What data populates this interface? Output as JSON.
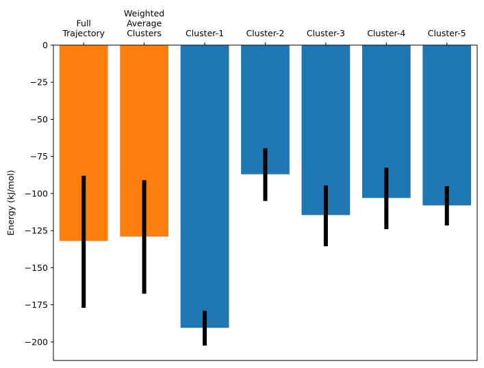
{
  "chart_data": {
    "type": "bar",
    "categories": [
      [
        "Full",
        "Trajectory"
      ],
      [
        "Weighted",
        "Average",
        "Clusters"
      ],
      [
        "Cluster-1"
      ],
      [
        "Cluster-2"
      ],
      [
        "Cluster-3"
      ],
      [
        "Cluster-4"
      ],
      [
        "Cluster-5"
      ]
    ],
    "values": [
      -132,
      -129,
      -190.5,
      -87,
      -114.5,
      -103,
      -108
    ],
    "error_low": [
      -177,
      -167.5,
      -202.5,
      -105,
      -135.5,
      -124,
      -121.5
    ],
    "error_high": [
      -88,
      -91,
      -179,
      -69.5,
      -94.5,
      -82.5,
      -95
    ],
    "colors": [
      "#ff7f0e",
      "#ff7f0e",
      "#1f77b4",
      "#1f77b4",
      "#1f77b4",
      "#1f77b4",
      "#1f77b4"
    ],
    "error_color": "#000000",
    "title": "",
    "xlabel": "",
    "ylabel": "Energy (kJ/mol)",
    "ylim": [
      -212.5,
      0
    ],
    "yticks": [
      0,
      -25,
      -50,
      -75,
      -100,
      -125,
      -150,
      -175,
      -200
    ],
    "ytick_labels": [
      "0",
      "−25",
      "−50",
      "−75",
      "−100",
      "−125",
      "−150",
      "−175",
      "−200"
    ],
    "xaxis_position": "top",
    "grid": false
  }
}
